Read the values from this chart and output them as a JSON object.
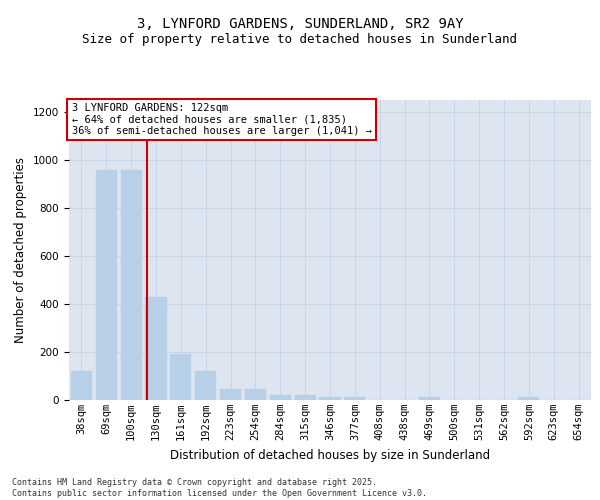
{
  "title_line1": "3, LYNFORD GARDENS, SUNDERLAND, SR2 9AY",
  "title_line2": "Size of property relative to detached houses in Sunderland",
  "xlabel": "Distribution of detached houses by size in Sunderland",
  "ylabel": "Number of detached properties",
  "categories": [
    "38sqm",
    "69sqm",
    "100sqm",
    "130sqm",
    "161sqm",
    "192sqm",
    "223sqm",
    "254sqm",
    "284sqm",
    "315sqm",
    "346sqm",
    "377sqm",
    "408sqm",
    "438sqm",
    "469sqm",
    "500sqm",
    "531sqm",
    "562sqm",
    "592sqm",
    "623sqm",
    "654sqm"
  ],
  "values": [
    120,
    960,
    960,
    430,
    193,
    120,
    47,
    47,
    20,
    20,
    13,
    13,
    0,
    0,
    13,
    0,
    0,
    0,
    13,
    0,
    0
  ],
  "bar_color": "#b8cfe8",
  "bar_edgecolor": "#b8cfe8",
  "vline_color": "#cc0000",
  "vline_x": 2.62,
  "annotation_text": "3 LYNFORD GARDENS: 122sqm\n← 64% of detached houses are smaller (1,835)\n36% of semi-detached houses are larger (1,041) →",
  "annotation_box_facecolor": "#ffffff",
  "annotation_box_edgecolor": "#cc0000",
  "annotation_fontsize": 7.5,
  "grid_color": "#c8d4e8",
  "background_color": "#dde6f0",
  "ylim": [
    0,
    1250
  ],
  "yticks": [
    0,
    200,
    400,
    600,
    800,
    1000,
    1200
  ],
  "footer_text": "Contains HM Land Registry data © Crown copyright and database right 2025.\nContains public sector information licensed under the Open Government Licence v3.0.",
  "title_fontsize": 10,
  "subtitle_fontsize": 9,
  "xlabel_fontsize": 8.5,
  "ylabel_fontsize": 8.5,
  "tick_fontsize": 7.5,
  "footer_fontsize": 6.0
}
